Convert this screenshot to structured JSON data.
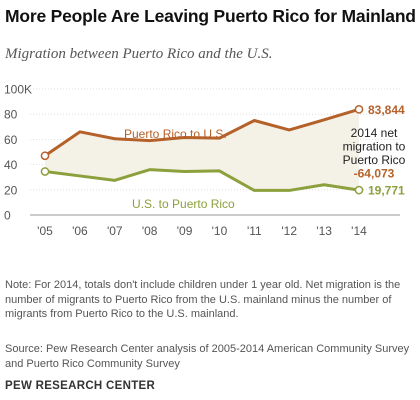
{
  "header": {
    "title": "More People Are Leaving Puerto Rico for Mainland",
    "subtitle": "Migration between Puerto Rico and the U.S."
  },
  "chart_data": {
    "type": "line",
    "x": [
      "'05",
      "'06",
      "'07",
      "'08",
      "'09",
      "'10",
      "'11",
      "'12",
      "'13",
      "'14"
    ],
    "y_ticks": [
      "0",
      "20",
      "40",
      "60",
      "80",
      "100K"
    ],
    "ylim": [
      0,
      100000
    ],
    "grid": true,
    "series": [
      {
        "name": "Puerto Rico to U.S.",
        "color": "#b5622a",
        "values": [
          47000,
          66000,
          60500,
          59000,
          61500,
          61000,
          75000,
          67500,
          75500,
          83844
        ]
      },
      {
        "name": "U.S. to Puerto Rico",
        "color": "#8ca03c",
        "values": [
          34500,
          31000,
          27500,
          36000,
          34500,
          35000,
          19500,
          19500,
          24000,
          19771
        ]
      }
    ],
    "end_labels": {
      "pr_to_us": "83,844",
      "us_to_pr": "19,771"
    },
    "annotation": {
      "lines": [
        "2014 net",
        "migration to",
        "Puerto Rico"
      ],
      "value": "-64,073",
      "value_color": "#b5622a"
    },
    "fill_color": "#f4f1e7"
  },
  "note": {
    "text": "Note: For 2014, totals don't include children under 1 year old. Net migration is the number of migrants to Puerto Rico from the U.S. mainland minus the number of migrants from Puerto Rico to the U.S. mainland.",
    "source": "Source: Pew Research Center analysis of 2005-2014 American Community Survey and Puerto Rico Community Survey"
  },
  "brand": "PEW RESEARCH CENTER"
}
